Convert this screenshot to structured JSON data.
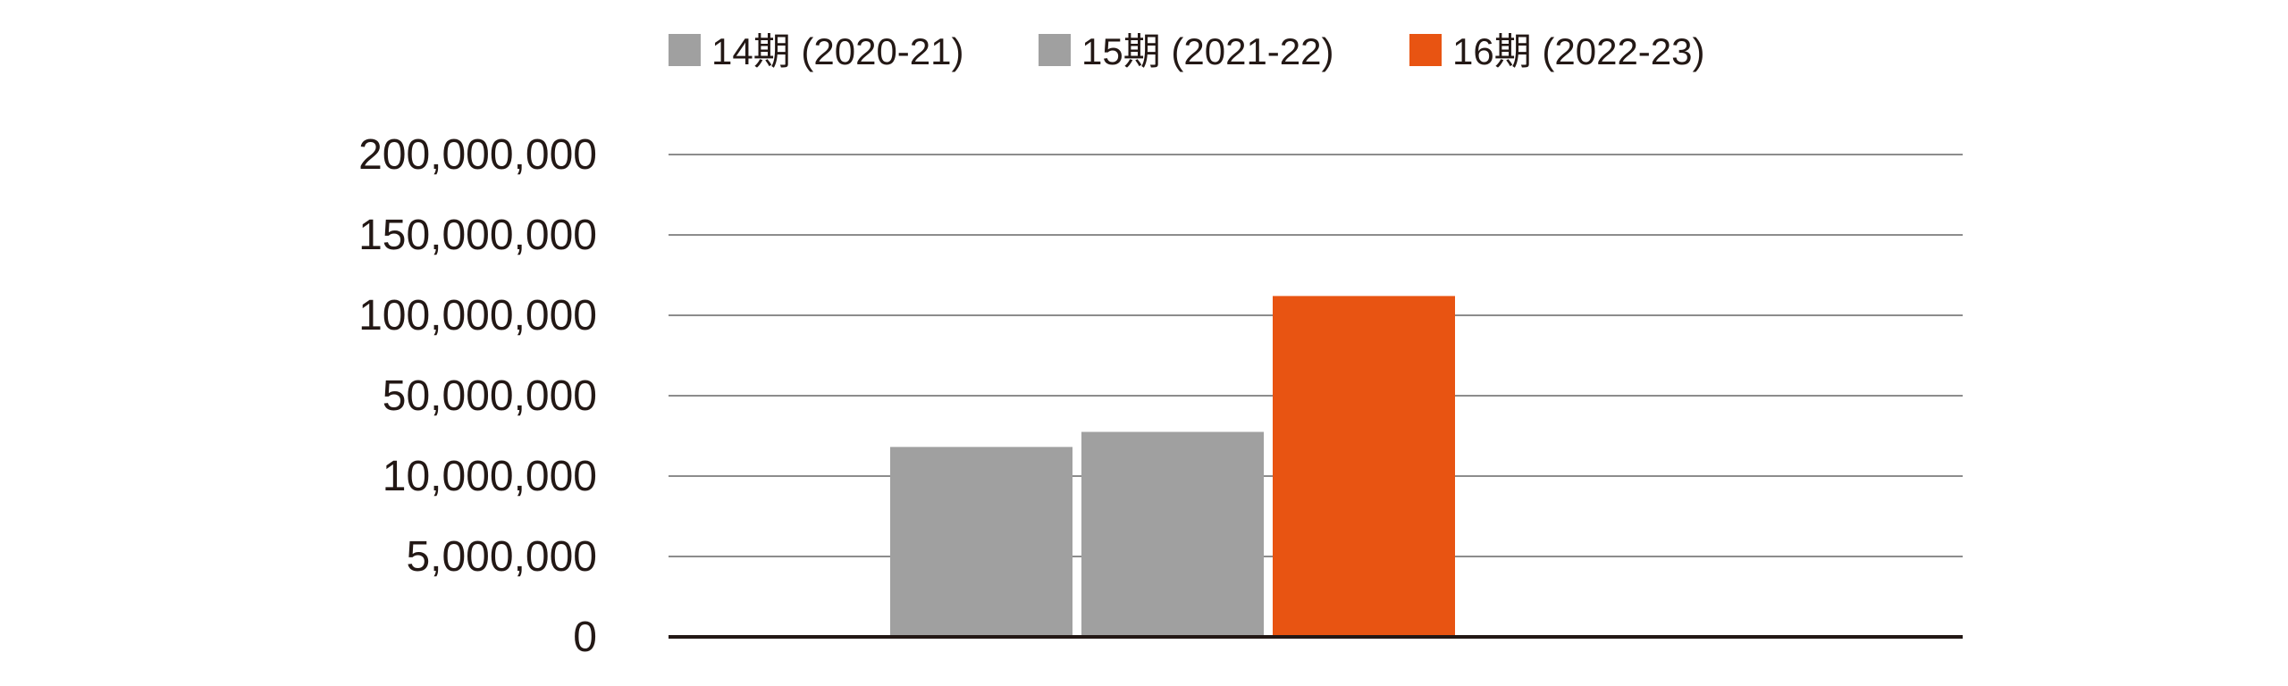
{
  "chart_data": {
    "type": "bar",
    "title": "",
    "xlabel": "",
    "ylabel": "",
    "categories": [
      ""
    ],
    "series": [
      {
        "name": "14期 (2020-21)",
        "values": [
          24500000
        ],
        "color": "#A0A0A0"
      },
      {
        "name": "15期 (2021-22)",
        "values": [
          32000000
        ],
        "color": "#A0A0A0"
      },
      {
        "name": "16期 (2022-23)",
        "values": [
          112000000
        ],
        "color": "#E85412"
      }
    ],
    "y_ticks": [
      "0",
      "5,000,000",
      "10,000,000",
      "50,000,000",
      "100,000,000",
      "150,000,000",
      "200,000,000"
    ],
    "y_tick_values": [
      0,
      5000000,
      10000000,
      50000000,
      100000000,
      150000000,
      200000000
    ],
    "y_scale": "non-linear (equally spaced tick labels)",
    "ylim": [
      0,
      200000000
    ],
    "grid": true,
    "legend_position": "top"
  }
}
